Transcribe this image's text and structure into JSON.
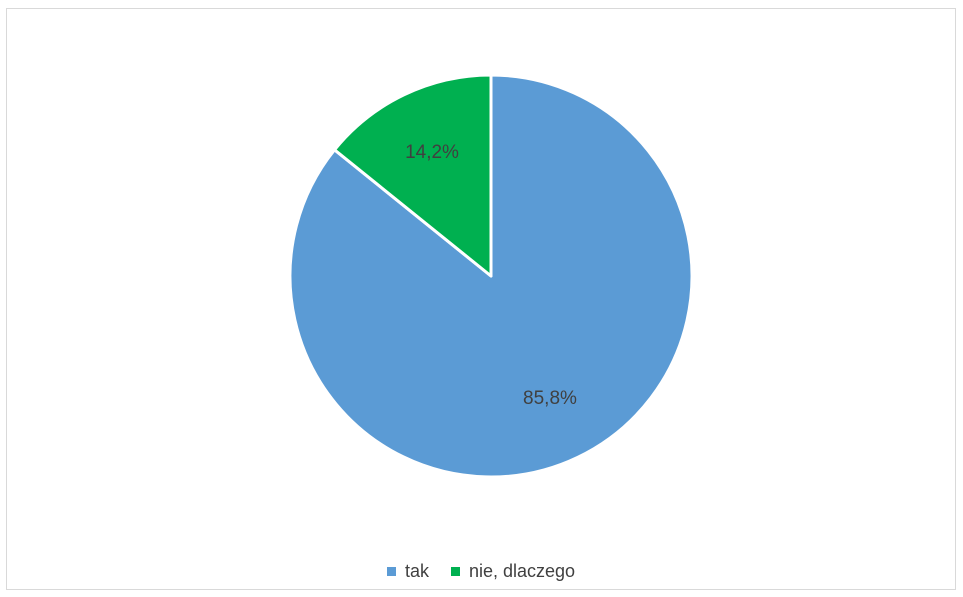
{
  "chart_data": {
    "type": "pie",
    "title": "",
    "categories": [
      "tak",
      "nie, dlaczego"
    ],
    "values": [
      85.8,
      14.2
    ],
    "data_labels": [
      "85,8%",
      "14,2%"
    ],
    "colors": [
      "#5b9bd5",
      "#00b050"
    ],
    "legend_position": "bottom",
    "start_angle": "12 o'clock",
    "direction": "clockwise"
  }
}
